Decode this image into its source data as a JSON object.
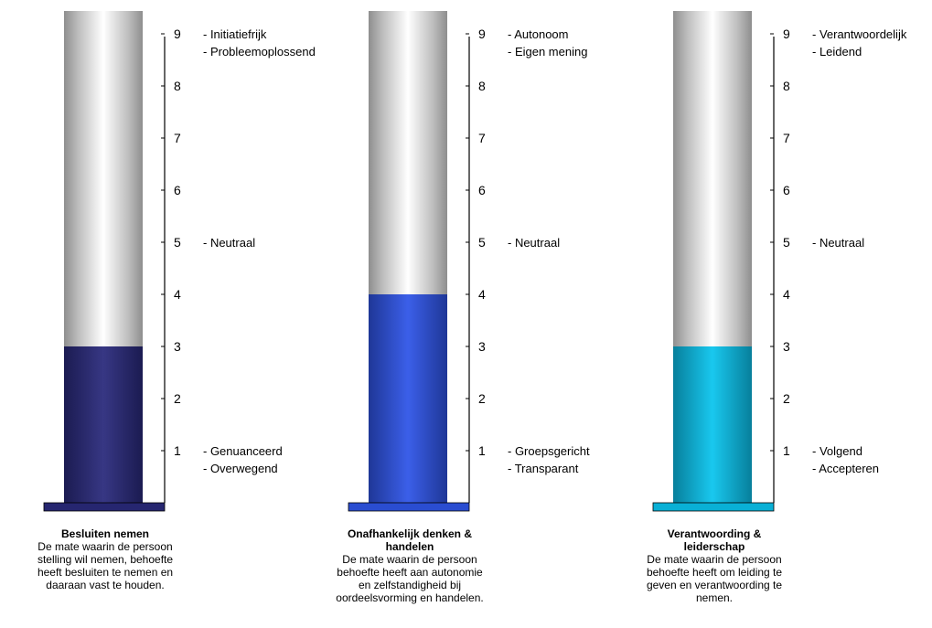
{
  "chart_data": [
    {
      "type": "bar",
      "title": "Besluiten nemen",
      "description": "De mate waarin de persoon stelling wil nemen, behoefte heeft besluiten te nemen en daaraan vast te houden.",
      "value": 3,
      "ylim": [
        0,
        9
      ],
      "ticks": [
        1,
        2,
        3,
        4,
        5,
        6,
        7,
        8,
        9
      ],
      "color": "#2a2a7c",
      "annotations": [
        {
          "at": 9,
          "lines": [
            "- Initiatiefrijk",
            "- Probleemoplossend"
          ]
        },
        {
          "at": 5,
          "lines": [
            "- Neutraal"
          ]
        },
        {
          "at": 1,
          "lines": [
            "- Genuanceerd",
            "- Overwegend"
          ]
        }
      ]
    },
    {
      "type": "bar",
      "title": "Onafhankelijk denken & handelen",
      "description": "De mate waarin de persoon behoefte heeft aan autonomie en zelfstandigheid bij oordeelsvorming en handelen.",
      "value": 4,
      "ylim": [
        0,
        9
      ],
      "ticks": [
        1,
        2,
        3,
        4,
        5,
        6,
        7,
        8,
        9
      ],
      "color": "#2f55e8",
      "annotations": [
        {
          "at": 9,
          "lines": [
            "- Autonoom",
            "- Eigen mening"
          ]
        },
        {
          "at": 5,
          "lines": [
            "- Neutraal"
          ]
        },
        {
          "at": 1,
          "lines": [
            "- Groepsgericht",
            "- Transparant"
          ]
        }
      ]
    },
    {
      "type": "bar",
      "title": "Verantwoording & leiderschap",
      "description": "De mate waarin de persoon behoefte heeft om leiding te geven en verantwoording te nemen.",
      "value": 3,
      "ylim": [
        0,
        9
      ],
      "ticks": [
        1,
        2,
        3,
        4,
        5,
        6,
        7,
        8,
        9
      ],
      "color": "#0ac4ee",
      "annotations": [
        {
          "at": 9,
          "lines": [
            "- Verantwoordelijk",
            "- Leidend"
          ]
        },
        {
          "at": 5,
          "lines": [
            "- Neutraal"
          ]
        },
        {
          "at": 1,
          "lines": [
            "- Volgend",
            "- Accepteren"
          ]
        }
      ]
    }
  ]
}
